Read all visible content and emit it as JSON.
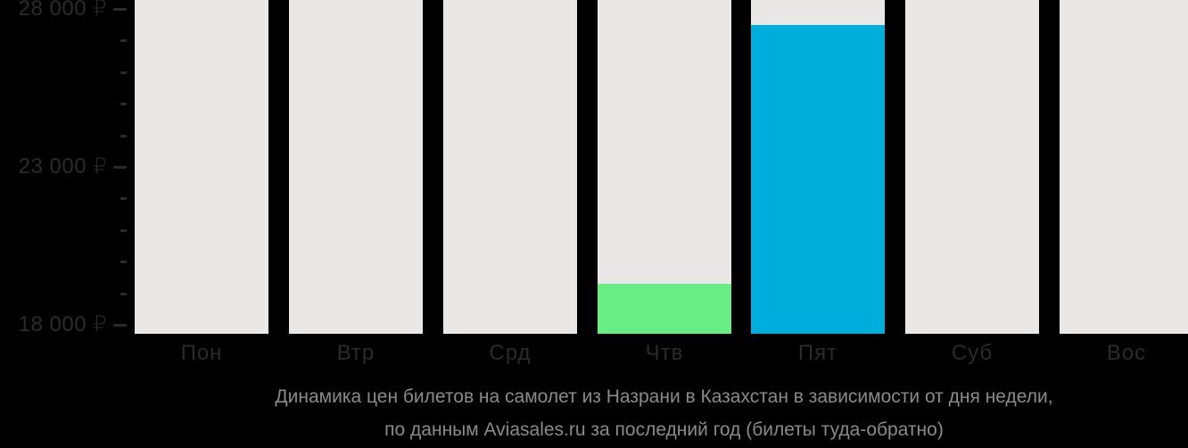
{
  "chart_data": {
    "type": "bar",
    "title": "Динамика цен билетов на самолет из Назрани в Казахстан в зависимости от дня недели, по данным Aviasales.ru за последний год (билеты туда-обратно)",
    "categories": [
      "Пон",
      "Втр",
      "Срд",
      "Чтв",
      "Пят",
      "Суб",
      "Вос"
    ],
    "values": [
      null,
      null,
      null,
      19300,
      27500,
      null,
      null
    ],
    "bar_colors": [
      null,
      null,
      null,
      "#69ee86",
      "#00aedc",
      null,
      null
    ],
    "placeholder_color": "#e9e8e7",
    "placeholder_full_height": true,
    "ylim": [
      17720,
      28280
    ],
    "yticks_major": [
      18000,
      23000,
      28000
    ],
    "ytick_labels": [
      "18 000 ₽",
      "23 000 ₽",
      "28 000 ₽"
    ],
    "minor_tick_step": 1000,
    "currency": "₽",
    "grid": false,
    "legend_position": "none",
    "xlabel": "",
    "ylabel": ""
  },
  "caption": {
    "line1": "Динамика цен билетов на самолет из Назрани в Казахстан в зависимости от дня недели,",
    "line2": "по данным Aviasales.ru за последний год (билеты туда-обратно)"
  },
  "colors": {
    "background": "#000000",
    "bar_placeholder": "#e9e8e7",
    "bar_thursday_green": "#69ee86",
    "bar_friday_blue": "#00aedc",
    "axis_text": "#2b2b2b",
    "caption_text": "#8a8a8a"
  }
}
